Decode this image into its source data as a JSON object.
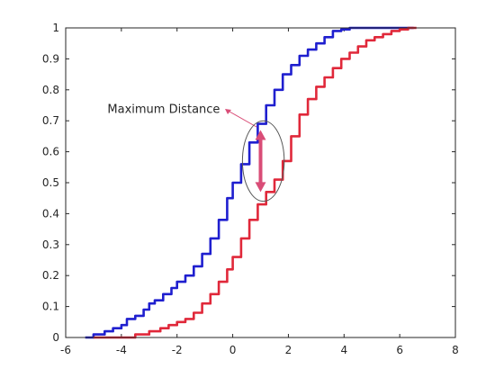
{
  "chart_data": {
    "type": "line",
    "title": "",
    "xlabel": "",
    "ylabel": "",
    "xlim": [
      -6,
      8
    ],
    "ylim": [
      0,
      1
    ],
    "xticks": [
      -6,
      -4,
      -2,
      0,
      2,
      4,
      6,
      8
    ],
    "yticks": [
      0,
      0.1,
      0.2,
      0.3,
      0.4,
      0.5,
      0.6,
      0.7,
      0.8,
      0.9,
      1
    ],
    "grid": false,
    "legend": "none",
    "series": [
      {
        "color": "#1f1fcf",
        "x": [
          -5.3,
          -5.0,
          -4.6,
          -4.3,
          -4.0,
          -3.8,
          -3.5,
          -3.2,
          -3.0,
          -2.8,
          -2.5,
          -2.2,
          -2.0,
          -1.7,
          -1.4,
          -1.1,
          -0.8,
          -0.5,
          -0.2,
          0.0,
          0.3,
          0.6,
          0.9,
          1.2,
          1.5,
          1.8,
          2.1,
          2.4,
          2.7,
          3.0,
          3.3,
          3.6,
          3.9,
          4.2,
          4.6,
          5.0,
          5.5,
          6.0,
          6.5
        ],
        "y": [
          0.0,
          0.01,
          0.02,
          0.03,
          0.04,
          0.06,
          0.07,
          0.09,
          0.11,
          0.12,
          0.14,
          0.16,
          0.18,
          0.2,
          0.23,
          0.27,
          0.32,
          0.38,
          0.45,
          0.5,
          0.56,
          0.63,
          0.69,
          0.75,
          0.8,
          0.85,
          0.88,
          0.91,
          0.93,
          0.95,
          0.97,
          0.99,
          0.995,
          1.0,
          1.0,
          1.0,
          1.0,
          1.0,
          1.0
        ]
      },
      {
        "color": "#e0283a",
        "x": [
          -5.0,
          -4.5,
          -4.0,
          -3.5,
          -3.0,
          -2.6,
          -2.3,
          -2.0,
          -1.7,
          -1.4,
          -1.1,
          -0.8,
          -0.5,
          -0.2,
          0.0,
          0.3,
          0.6,
          0.9,
          1.2,
          1.5,
          1.8,
          2.1,
          2.4,
          2.7,
          3.0,
          3.3,
          3.6,
          3.9,
          4.2,
          4.5,
          4.8,
          5.1,
          5.4,
          5.7,
          6.0,
          6.3,
          6.6
        ],
        "y": [
          0.0,
          0.0,
          0.0,
          0.01,
          0.02,
          0.03,
          0.04,
          0.05,
          0.06,
          0.08,
          0.11,
          0.14,
          0.18,
          0.22,
          0.26,
          0.32,
          0.38,
          0.43,
          0.47,
          0.51,
          0.57,
          0.65,
          0.72,
          0.77,
          0.81,
          0.84,
          0.87,
          0.9,
          0.92,
          0.94,
          0.96,
          0.97,
          0.98,
          0.99,
          0.995,
          1.0,
          1.0
        ]
      }
    ],
    "annotations": [
      {
        "text": "Maximum Distance",
        "x": -4.5,
        "y": 0.74,
        "arrow_to": [
          -0.3,
          0.74
        ]
      },
      {
        "type": "double-arrow",
        "x": 1.0,
        "y_from": 0.47,
        "y_to": 0.67,
        "color": "#d94d77"
      },
      {
        "type": "ellipse",
        "cx": 1.1,
        "cy": 0.57,
        "rx": 0.75,
        "ry": 0.13
      }
    ]
  }
}
